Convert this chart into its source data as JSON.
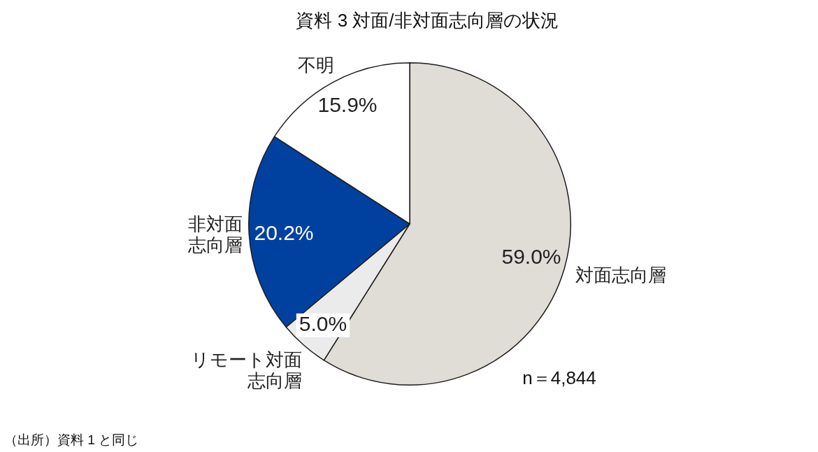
{
  "chart_data": {
    "type": "pie",
    "title": "資料 3 対面/非対面志向層の状況",
    "categories": [
      "対面志向層",
      "リモート対面志向層",
      "非対面志向層",
      "不明"
    ],
    "values": [
      59.0,
      5.0,
      20.2,
      15.9
    ],
    "colors": [
      "#e0dcd6",
      "#ebebeb",
      "#0041a0",
      "#ffffff"
    ],
    "value_labels": [
      "59.0%",
      "5.0%",
      "20.2%",
      "15.9%"
    ],
    "annotations": [
      "n＝4,844",
      "（出所）資料 1 と同じ"
    ]
  }
}
